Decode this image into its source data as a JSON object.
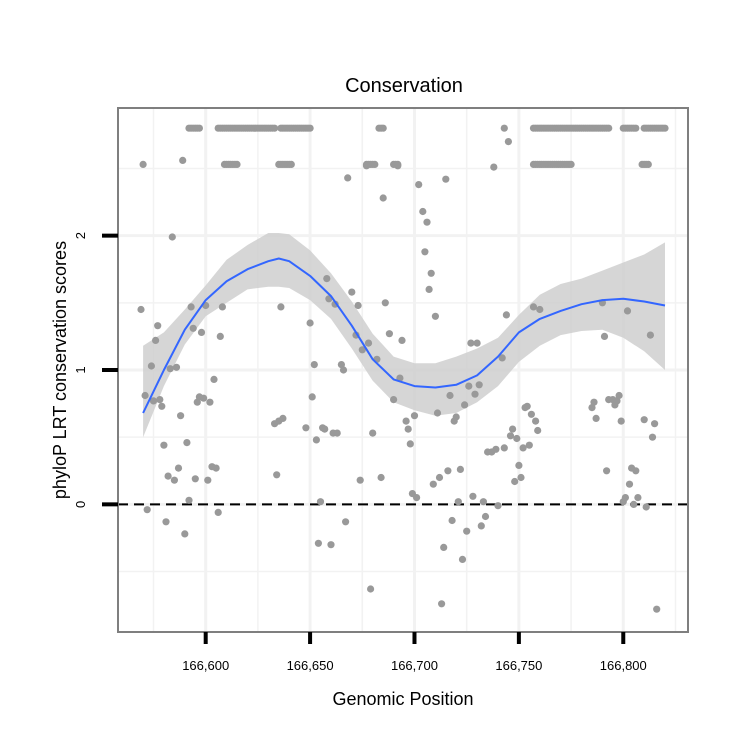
{
  "chart_data": {
    "type": "scatter",
    "title": "Conservation",
    "xlabel": "Genomic Position",
    "ylabel": "phyloP LRT conservation scores",
    "xlim": [
      166558,
      166831
    ],
    "ylim": [
      -0.95,
      2.95
    ],
    "x_ticks": [
      166600,
      166650,
      166700,
      166750,
      166800
    ],
    "x_tick_labels": [
      "166,600",
      "166,650",
      "166,700",
      "166,750",
      "166,800"
    ],
    "y_ticks": [
      0,
      1,
      2
    ],
    "y_tick_labels": [
      "0",
      "1",
      "2"
    ],
    "grid": true,
    "reference_line": {
      "y": 0,
      "style": "dashed"
    },
    "colors": {
      "points": "#999999",
      "smooth": "#3366ff",
      "ribbon": "#cccccc",
      "panel_border": "#7f7f7f",
      "grid": "#f2f2f2"
    },
    "points": [
      [
        166570,
        2.53
      ],
      [
        166569,
        1.45
      ],
      [
        166571,
        0.81
      ],
      [
        166572,
        -0.04
      ],
      [
        166574,
        1.03
      ],
      [
        166575,
        0.77
      ],
      [
        166576,
        1.22
      ],
      [
        166577,
        1.33
      ],
      [
        166578,
        0.78
      ],
      [
        166579,
        0.73
      ],
      [
        166580,
        0.44
      ],
      [
        166581,
        -0.13
      ],
      [
        166582,
        0.21
      ],
      [
        166583,
        1.01
      ],
      [
        166584,
        1.99
      ],
      [
        166585,
        0.18
      ],
      [
        166586,
        1.02
      ],
      [
        166587,
        0.27
      ],
      [
        166588,
        0.66
      ],
      [
        166589,
        2.56
      ],
      [
        166590,
        -0.22
      ],
      [
        166591,
        0.46
      ],
      [
        166592,
        0.03
      ],
      [
        166593,
        1.47
      ],
      [
        166594,
        1.31
      ],
      [
        166595,
        0.19
      ],
      [
        166596,
        0.76
      ],
      [
        166597,
        0.8
      ],
      [
        166598,
        1.28
      ],
      [
        166599,
        0.79
      ],
      [
        166600,
        1.48
      ],
      [
        166601,
        0.18
      ],
      [
        166602,
        0.76
      ],
      [
        166603,
        0.28
      ],
      [
        166604,
        0.93
      ],
      [
        166605,
        0.27
      ],
      [
        166606,
        -0.06
      ],
      [
        166607,
        1.25
      ],
      [
        166608,
        1.47
      ],
      [
        166633,
        0.6
      ],
      [
        166634,
        0.22
      ],
      [
        166635,
        0.62
      ],
      [
        166636,
        1.47
      ],
      [
        166637,
        0.64
      ],
      [
        166648,
        0.57
      ],
      [
        166650,
        1.35
      ],
      [
        166651,
        0.8
      ],
      [
        166652,
        1.04
      ],
      [
        166653,
        0.48
      ],
      [
        166654,
        -0.29
      ],
      [
        166655,
        0.02
      ],
      [
        166656,
        0.57
      ],
      [
        166657,
        0.56
      ],
      [
        166658,
        1.68
      ],
      [
        166659,
        1.53
      ],
      [
        166660,
        -0.3
      ],
      [
        166661,
        0.53
      ],
      [
        166662,
        1.49
      ],
      [
        166663,
        0.53
      ],
      [
        166665,
        1.04
      ],
      [
        166666,
        1.0
      ],
      [
        166667,
        -0.13
      ],
      [
        166668,
        2.43
      ],
      [
        166670,
        1.58
      ],
      [
        166672,
        1.26
      ],
      [
        166673,
        1.48
      ],
      [
        166674,
        0.18
      ],
      [
        166675,
        1.15
      ],
      [
        166677,
        2.52
      ],
      [
        166678,
        1.2
      ],
      [
        166679,
        -0.63
      ],
      [
        166680,
        0.53
      ],
      [
        166682,
        1.08
      ],
      [
        166684,
        0.2
      ],
      [
        166685,
        2.28
      ],
      [
        166686,
        1.5
      ],
      [
        166688,
        1.27
      ],
      [
        166690,
        0.78
      ],
      [
        166692,
        2.52
      ],
      [
        166693,
        0.94
      ],
      [
        166694,
        1.22
      ],
      [
        166696,
        0.62
      ],
      [
        166697,
        0.56
      ],
      [
        166698,
        0.45
      ],
      [
        166699,
        0.08
      ],
      [
        166700,
        0.66
      ],
      [
        166701,
        0.05
      ],
      [
        166702,
        2.38
      ],
      [
        166704,
        2.18
      ],
      [
        166705,
        1.88
      ],
      [
        166706,
        2.1
      ],
      [
        166707,
        1.6
      ],
      [
        166708,
        1.72
      ],
      [
        166709,
        0.15
      ],
      [
        166710,
        1.4
      ],
      [
        166711,
        0.68
      ],
      [
        166712,
        0.2
      ],
      [
        166713,
        -0.74
      ],
      [
        166714,
        -0.32
      ],
      [
        166715,
        2.42
      ],
      [
        166716,
        0.25
      ],
      [
        166717,
        0.81
      ],
      [
        166718,
        -0.12
      ],
      [
        166719,
        0.62
      ],
      [
        166720,
        0.65
      ],
      [
        166721,
        0.02
      ],
      [
        166722,
        0.26
      ],
      [
        166723,
        -0.41
      ],
      [
        166724,
        0.74
      ],
      [
        166725,
        -0.2
      ],
      [
        166726,
        0.88
      ],
      [
        166727,
        1.2
      ],
      [
        166728,
        0.06
      ],
      [
        166729,
        0.82
      ],
      [
        166730,
        1.2
      ],
      [
        166731,
        0.89
      ],
      [
        166732,
        -0.16
      ],
      [
        166733,
        0.02
      ],
      [
        166734,
        -0.09
      ],
      [
        166735,
        0.39
      ],
      [
        166737,
        0.39
      ],
      [
        166738,
        2.51
      ],
      [
        166739,
        0.41
      ],
      [
        166740,
        -0.01
      ],
      [
        166742,
        1.09
      ],
      [
        166743,
        0.42
      ],
      [
        166744,
        1.41
      ],
      [
        166745,
        2.7
      ],
      [
        166746,
        0.51
      ],
      [
        166747,
        0.56
      ],
      [
        166748,
        0.17
      ],
      [
        166749,
        0.49
      ],
      [
        166750,
        0.29
      ],
      [
        166751,
        0.2
      ],
      [
        166752,
        0.42
      ],
      [
        166753,
        0.72
      ],
      [
        166754,
        0.73
      ],
      [
        166755,
        0.44
      ],
      [
        166756,
        0.67
      ],
      [
        166757,
        1.47
      ],
      [
        166758,
        0.62
      ],
      [
        166759,
        0.55
      ],
      [
        166760,
        1.45
      ],
      [
        166785,
        0.72
      ],
      [
        166786,
        0.76
      ],
      [
        166787,
        0.64
      ],
      [
        166790,
        1.5
      ],
      [
        166791,
        1.25
      ],
      [
        166792,
        0.25
      ],
      [
        166793,
        0.78
      ],
      [
        166795,
        0.78
      ],
      [
        166796,
        0.74
      ],
      [
        166797,
        0.77
      ],
      [
        166798,
        0.81
      ],
      [
        166799,
        0.62
      ],
      [
        166800,
        0.02
      ],
      [
        166801,
        0.05
      ],
      [
        166802,
        1.44
      ],
      [
        166803,
        0.15
      ],
      [
        166804,
        0.27
      ],
      [
        166805,
        0.0
      ],
      [
        166806,
        0.25
      ],
      [
        166807,
        0.05
      ],
      [
        166810,
        0.63
      ],
      [
        166811,
        -0.02
      ],
      [
        166813,
        1.26
      ],
      [
        166814,
        0.5
      ],
      [
        166815,
        0.6
      ],
      [
        166816,
        -0.78
      ]
    ],
    "top_rows": [
      {
        "y": 2.8,
        "segments": [
          [
            166592,
            166597
          ],
          [
            166606,
            166633
          ],
          [
            166636,
            166650
          ],
          [
            166683,
            166685
          ],
          [
            166743,
            166743
          ],
          [
            166757,
            166793
          ],
          [
            166800,
            166806
          ],
          [
            166810,
            166820
          ]
        ]
      },
      {
        "y": 2.53,
        "segments": [
          [
            166609,
            166615
          ],
          [
            166635,
            166641
          ],
          [
            166677,
            166681
          ],
          [
            166690,
            166692
          ],
          [
            166757,
            166775
          ],
          [
            166809,
            166812
          ]
        ]
      }
    ],
    "smooth": {
      "x": [
        166570,
        166580,
        166590,
        166600,
        166610,
        166620,
        166630,
        166635,
        166640,
        166650,
        166660,
        166670,
        166680,
        166690,
        166700,
        166710,
        166720,
        166730,
        166740,
        166750,
        166760,
        166770,
        166780,
        166790,
        166800,
        166810,
        166820
      ],
      "y": [
        0.68,
        1.0,
        1.3,
        1.52,
        1.66,
        1.75,
        1.81,
        1.83,
        1.81,
        1.7,
        1.55,
        1.33,
        1.08,
        0.93,
        0.88,
        0.87,
        0.89,
        0.96,
        1.1,
        1.28,
        1.38,
        1.44,
        1.49,
        1.52,
        1.53,
        1.51,
        1.48
      ],
      "ymin": [
        0.5,
        0.88,
        1.19,
        1.4,
        1.5,
        1.6,
        1.62,
        1.62,
        1.61,
        1.52,
        1.38,
        1.16,
        0.92,
        0.76,
        0.7,
        0.66,
        0.68,
        0.76,
        0.88,
        1.06,
        1.18,
        1.26,
        1.29,
        1.3,
        1.24,
        1.14,
        1.0
      ],
      "ymax": [
        1.18,
        1.28,
        1.45,
        1.63,
        1.82,
        1.93,
        2.02,
        2.02,
        2.01,
        1.89,
        1.72,
        1.51,
        1.27,
        1.1,
        1.05,
        1.05,
        1.1,
        1.16,
        1.24,
        1.41,
        1.56,
        1.64,
        1.68,
        1.74,
        1.8,
        1.86,
        1.95
      ]
    }
  }
}
